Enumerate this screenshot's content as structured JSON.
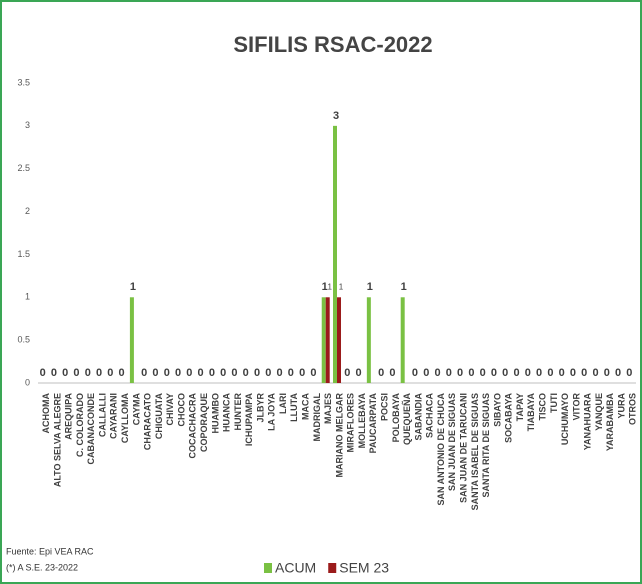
{
  "chart_data": {
    "type": "bar",
    "title": "SIFILIS RSAC-2022",
    "categories": [
      "ACHOMA",
      "ALTO SELVA ALEGRE",
      "AREQUIPA",
      "C. COLORADO",
      "CABANACONDE",
      "CALLALLI",
      "CAYARANI",
      "CAYLLOMA",
      "CAYMA",
      "CHARACATO",
      "CHIGUATA",
      "CHIVAY",
      "CHOCO",
      "COCACHACRA",
      "COPORAQUE",
      "HUAMBO",
      "HUANCA",
      "HUNTER",
      "ICHUPAMPA",
      "JLBYR",
      "LA JOYA",
      "LARI",
      "LLUTA",
      "MACA",
      "MADRIGAL",
      "MAJES",
      "MARIANO MELGAR",
      "MIRAFLORES",
      "MOLLEBAYA",
      "PAUCARPATA",
      "POCSI",
      "POLOBAYA",
      "QUEQUEÑA",
      "SABANDIA",
      "SACHACA",
      "SAN ANTONIO DE CHUCA",
      "SAN JUAN DE SIGUAS",
      "SAN JUAN DE TARUCANI",
      "SANTA ISABEL DE SIGUAS",
      "SANTA RITA DE SIGUAS",
      "SIBAYO",
      "SOCABAYA",
      "TAPAY",
      "TIABAYA",
      "TISCO",
      "TUTI",
      "UCHUMAYO",
      "VITOR",
      "YANAHUARA",
      "YANQUE",
      "YARABAMBA",
      "YURA",
      "OTROS"
    ],
    "series": [
      {
        "name": "ACUM",
        "color": "#7ac143",
        "values": [
          0,
          0,
          0,
          0,
          0,
          0,
          0,
          0,
          1,
          0,
          0,
          0,
          0,
          0,
          0,
          0,
          0,
          0,
          0,
          0,
          0,
          0,
          0,
          0,
          0,
          1,
          3,
          0,
          0,
          1,
          0,
          0,
          1,
          0,
          0,
          0,
          0,
          0,
          0,
          0,
          0,
          0,
          0,
          0,
          0,
          0,
          0,
          0,
          0,
          0,
          0,
          0,
          0
        ]
      },
      {
        "name": "SEM 23",
        "color": "#9b1b1b",
        "values": [
          0,
          0,
          0,
          0,
          0,
          0,
          0,
          0,
          0,
          0,
          0,
          0,
          0,
          0,
          0,
          0,
          0,
          0,
          0,
          0,
          0,
          0,
          0,
          0,
          0,
          1,
          1,
          0,
          0,
          0,
          0,
          0,
          0,
          0,
          0,
          0,
          0,
          0,
          0,
          0,
          0,
          0,
          0,
          0,
          0,
          0,
          0,
          0,
          0,
          0,
          0,
          0,
          0
        ]
      }
    ],
    "ylim": [
      0,
      3.5
    ],
    "yticks": [
      0,
      0.5,
      1,
      1.5,
      2,
      2.5,
      3,
      3.5
    ],
    "notes": [
      "Fuente:  Epi VEA RAC",
      "(*) A S.E. 23-2022"
    ]
  }
}
